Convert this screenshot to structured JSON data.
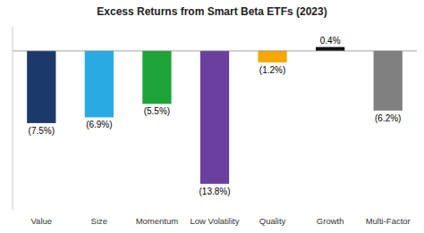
{
  "chart_data": {
    "type": "bar",
    "title": "Excess Returns from Smart Beta ETFs (2023)",
    "categories": [
      "Value",
      "Size",
      "Momentum",
      "Low Volatility",
      "Quality",
      "Growth",
      "Multi-Factor"
    ],
    "values": [
      -7.5,
      -6.9,
      -5.5,
      -13.8,
      -1.2,
      0.4,
      -6.2
    ],
    "value_labels": [
      "(7.5%)",
      "(6.9%)",
      "(5.5%)",
      "(13.8%)",
      "(1.2%)",
      "0.4%",
      "(6.2%)"
    ],
    "colors": [
      "#1b3a6b",
      "#29abe2",
      "#1da337",
      "#6a3f9e",
      "#f5a800",
      "#111111",
      "#808080"
    ],
    "ylim": [
      -16.5,
      2.5
    ],
    "data_labels": true,
    "tick_labels": "x",
    "grid": false
  }
}
